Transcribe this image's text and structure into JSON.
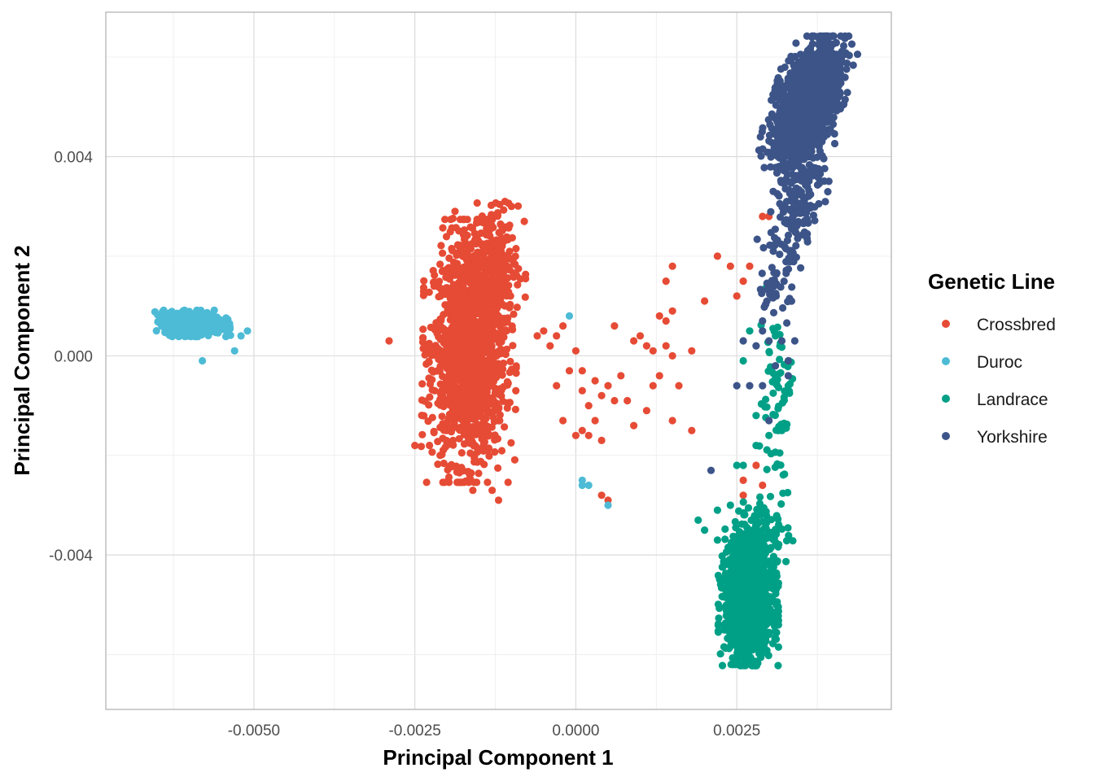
{
  "chart_data": {
    "type": "scatter",
    "title": "",
    "xlabel": "Principal Component 1",
    "ylabel": "Principal Component 2",
    "xlim": [
      -0.0073,
      0.0049
    ],
    "ylim": [
      -0.0071,
      0.0069
    ],
    "x_ticks": [
      {
        "value": -0.005,
        "label": "-0.0050"
      },
      {
        "value": -0.0025,
        "label": "-0.0025"
      },
      {
        "value": 0.0,
        "label": "0.0000"
      },
      {
        "value": 0.0025,
        "label": "0.0025"
      }
    ],
    "y_ticks": [
      {
        "value": 0.004,
        "label": "0.004"
      },
      {
        "value": 0.0,
        "label": "0.000"
      },
      {
        "value": -0.004,
        "label": "-0.004"
      }
    ],
    "grid": true,
    "legend": {
      "title": "Genetic Line",
      "placement": "right",
      "entries": [
        "Crossbred",
        "Duroc",
        "Landrace",
        "Yorkshire"
      ]
    },
    "series": [
      {
        "name": "Crossbred",
        "color": "#E64B35",
        "clusters": [
          {
            "cx": -0.00165,
            "cy": 0.0001,
            "sx": 0.00028,
            "sy": 0.0011,
            "slope": 0.08,
            "n": 1500
          },
          {
            "cx": -0.00135,
            "cy": 0.0018,
            "sx": 0.00022,
            "sy": 0.0006,
            "slope": 0.05,
            "n": 250
          }
        ],
        "points": [
          [
            -0.0029,
            0.0003
          ],
          [
            -0.0025,
            -0.0018
          ],
          [
            -0.0022,
            0.0014
          ],
          [
            -0.0021,
            0.0012
          ],
          [
            -0.0011,
            0.0031
          ],
          [
            -0.001,
            0.003
          ],
          [
            -0.0008,
            0.0027
          ],
          [
            -0.0012,
            -0.0029
          ],
          [
            -0.0013,
            -0.0027
          ],
          [
            -0.0016,
            -0.0027
          ],
          [
            -0.0006,
            0.0004
          ],
          [
            -0.0004,
            0.0002
          ],
          [
            -0.0005,
            0.0005
          ],
          [
            -0.0003,
            0.0004
          ],
          [
            -0.0002,
            0.0006
          ],
          [
            -0.0001,
            -0.0003
          ],
          [
            -0.0003,
            -0.0006
          ],
          [
            -0.0002,
            -0.0013
          ],
          [
            0.0,
            0.0001
          ],
          [
            0.0001,
            -0.0003
          ],
          [
            0.0001,
            -0.0007
          ],
          [
            0.0002,
            -0.001
          ],
          [
            0.0001,
            -0.0015
          ],
          [
            0.0003,
            -0.0013
          ],
          [
            0.0004,
            -0.0008
          ],
          [
            0.0003,
            -0.0005
          ],
          [
            0.0005,
            -0.0006
          ],
          [
            0.0006,
            -0.0009
          ],
          [
            0.0004,
            -0.0017
          ],
          [
            0.0002,
            -0.0016
          ],
          [
            0.0,
            -0.0016
          ],
          [
            0.0006,
            0.0006
          ],
          [
            0.0007,
            -0.0004
          ],
          [
            0.0008,
            -0.0009
          ],
          [
            0.0009,
            0.0003
          ],
          [
            0.001,
            0.0004
          ],
          [
            0.0011,
            0.0002
          ],
          [
            0.0012,
            0.0001
          ],
          [
            0.0013,
            -0.0004
          ],
          [
            0.0014,
            0.0002
          ],
          [
            0.0013,
            0.0008
          ],
          [
            0.0015,
            0.0018
          ],
          [
            0.0014,
            0.0015
          ],
          [
            0.0015,
            0.0009
          ],
          [
            0.0015,
            0.0
          ],
          [
            0.0016,
            -0.0006
          ],
          [
            0.0014,
            0.0007
          ],
          [
            0.0018,
            0.0001
          ],
          [
            0.0012,
            -0.0006
          ],
          [
            0.0011,
            -0.0011
          ],
          [
            0.0009,
            -0.0014
          ],
          [
            0.0015,
            -0.0013
          ],
          [
            0.0018,
            -0.0015
          ],
          [
            0.0005,
            -0.0029
          ],
          [
            0.0004,
            -0.0028
          ],
          [
            0.002,
            0.0011
          ],
          [
            0.0022,
            0.002
          ],
          [
            0.0024,
            0.0018
          ],
          [
            0.0025,
            0.0012
          ],
          [
            0.0026,
            0.0015
          ],
          [
            0.0027,
            0.0018
          ],
          [
            0.0029,
            0.0028
          ],
          [
            0.003,
            0.0028
          ],
          [
            0.0026,
            -0.0025
          ],
          [
            0.0026,
            -0.0028
          ],
          [
            0.0029,
            -0.0026
          ],
          [
            0.0028,
            -0.0022
          ]
        ]
      },
      {
        "name": "Duroc",
        "color": "#4DBBD5",
        "clusters": [
          {
            "cx": -0.00595,
            "cy": 0.00065,
            "sx": 0.00022,
            "sy": 0.00011,
            "slope": -0.05,
            "n": 700
          }
        ],
        "points": [
          [
            -0.0051,
            0.0005
          ],
          [
            -0.0052,
            0.0004
          ],
          [
            -0.0053,
            0.0001
          ],
          [
            -0.0058,
            -0.0001
          ],
          [
            -0.0001,
            0.0008
          ],
          [
            0.0001,
            -0.0025
          ],
          [
            0.0002,
            -0.0026
          ],
          [
            0.0001,
            -0.0026
          ],
          [
            0.0005,
            -0.003
          ]
        ]
      },
      {
        "name": "Landrace",
        "color": "#00A087",
        "clusters": [
          {
            "cx": 0.00268,
            "cy": -0.0049,
            "sx": 0.00018,
            "sy": 0.00055,
            "slope": 0.0,
            "n": 1400
          },
          {
            "cx": 0.00285,
            "cy": -0.0036,
            "sx": 0.00022,
            "sy": 0.0004,
            "slope": 0.0,
            "n": 120
          },
          {
            "cx": 0.0031,
            "cy": -0.0008,
            "sx": 0.00012,
            "sy": 0.0009,
            "slope": 0.0,
            "n": 70
          }
        ],
        "points": [
          [
            0.0019,
            -0.0033
          ],
          [
            0.002,
            -0.0035
          ],
          [
            0.0022,
            -0.0031
          ],
          [
            0.0024,
            -0.003
          ],
          [
            0.0022,
            -0.0037
          ],
          [
            0.0025,
            -0.0022
          ],
          [
            0.0026,
            -0.0022
          ],
          [
            0.0028,
            -0.0018
          ],
          [
            0.003,
            -0.0016
          ],
          [
            0.0032,
            -0.0015
          ],
          [
            0.0028,
            -0.0012
          ],
          [
            0.0031,
            0.0004
          ],
          [
            0.0027,
            0.0005
          ],
          [
            0.0026,
            -0.0001
          ],
          [
            0.0033,
            -0.0006
          ]
        ]
      },
      {
        "name": "Yorkshire",
        "color": "#3C5488",
        "clusters": [
          {
            "cx": 0.0036,
            "cy": 0.0051,
            "sx": 0.00022,
            "sy": 0.00055,
            "slope": 1.0,
            "n": 1400
          },
          {
            "cx": 0.00345,
            "cy": 0.0033,
            "sx": 0.00018,
            "sy": 0.0008,
            "slope": 0.8,
            "n": 220
          },
          {
            "cx": 0.0031,
            "cy": 0.0015,
            "sx": 0.00012,
            "sy": 0.00035,
            "slope": 0.0,
            "n": 45
          }
        ],
        "points": [
          [
            0.0029,
            0.0007
          ],
          [
            0.0029,
            0.0005
          ],
          [
            0.003,
            0.0003
          ],
          [
            0.0032,
            0.0003
          ],
          [
            0.0034,
            0.0003
          ],
          [
            0.0033,
            -0.0001
          ],
          [
            0.0031,
            -0.0002
          ],
          [
            0.0028,
            0.0002
          ],
          [
            0.0027,
            -0.0006
          ],
          [
            0.0025,
            -0.0006
          ],
          [
            0.0029,
            -0.0006
          ],
          [
            0.0033,
            -0.0004
          ],
          [
            0.0021,
            -0.0023
          ],
          [
            0.003,
            -0.0013
          ],
          [
            0.0026,
            0.0003
          ]
        ]
      }
    ]
  }
}
